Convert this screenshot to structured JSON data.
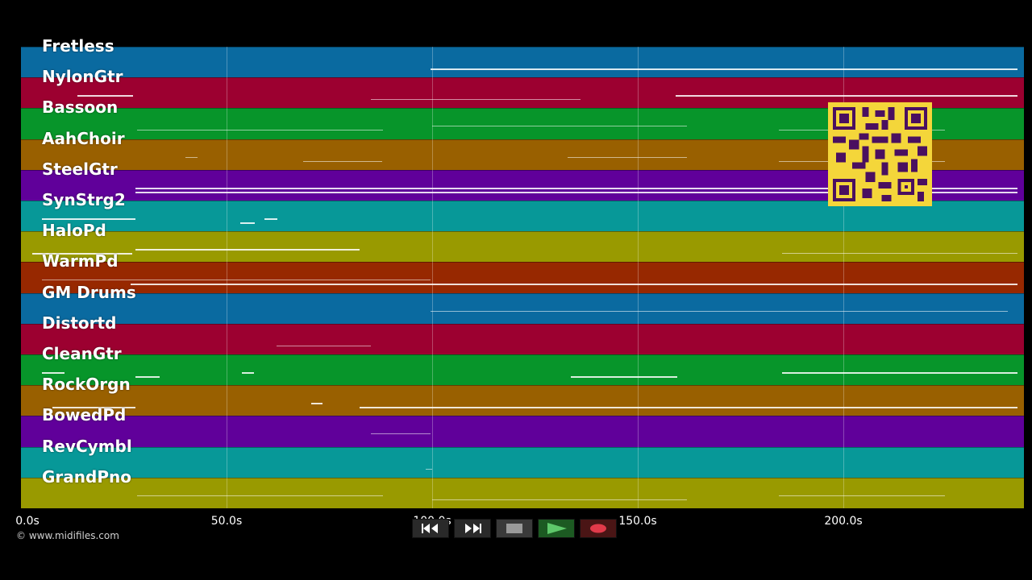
{
  "tracks": [
    {
      "name": "Fretless",
      "color": "#0a6aa0"
    },
    {
      "name": "NylonGtr",
      "color": "#9c0030"
    },
    {
      "name": "Bassoon",
      "color": "#07952a"
    },
    {
      "name": "AahChoir",
      "color": "#996000"
    },
    {
      "name": "SteelGtr",
      "color": "#60009a"
    },
    {
      "name": "SynStrg2",
      "color": "#079898"
    },
    {
      "name": "HaloPd",
      "color": "#999a00"
    },
    {
      "name": "WarmPd",
      "color": "#972800"
    },
    {
      "name": "GM Drums",
      "color": "#0a6aa0"
    },
    {
      "name": "Distortd",
      "color": "#9c0030"
    },
    {
      "name": "CleanGtr",
      "color": "#07952a"
    },
    {
      "name": "RockOrgn",
      "color": "#996000"
    },
    {
      "name": "BowedPd",
      "color": "#60009a"
    },
    {
      "name": "RevCymbl",
      "color": "#079898"
    },
    {
      "name": "GrandPno",
      "color": "#999a00"
    }
  ],
  "time_axis": {
    "ticks": [
      "0.0s",
      "50.0s",
      "100.0s",
      "150.0s",
      "200.0s"
    ]
  },
  "copyright": "© www.midifiles.com",
  "controls": [
    {
      "name": "rewind-button",
      "icon": "rewind-icon"
    },
    {
      "name": "fast-forward-button",
      "icon": "fast-forward-icon"
    },
    {
      "name": "stop-button",
      "icon": "stop-icon"
    },
    {
      "name": "play-button",
      "icon": "play-icon"
    },
    {
      "name": "record-button",
      "icon": "record-icon"
    }
  ],
  "qr_code": {
    "icon": "qr-code-icon",
    "color": "#f4d63a"
  }
}
